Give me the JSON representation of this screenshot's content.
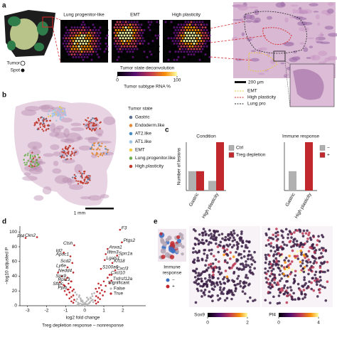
{
  "panel_labels": [
    "a",
    "b",
    "c",
    "d",
    "e"
  ],
  "panel_a": {
    "legend": [
      "Tumor",
      "Spot"
    ],
    "spot_maps": [
      "Lung progenitor-like",
      "EMT",
      "High plasticity"
    ],
    "colorbar": {
      "title": "Tumor state deconvolution",
      "lim": [
        0,
        100
      ],
      "ticks": [
        0,
        100
      ],
      "label": "Tumor subtype RNA %"
    },
    "scale_bar": "200 μm",
    "outline_legend": [
      {
        "name": "EMT",
        "color": "#e8c83a"
      },
      {
        "name": "High plasticity",
        "color": "#d62728"
      },
      {
        "name": "Lung pro",
        "color": "#222222"
      }
    ]
  },
  "panel_b": {
    "legend_title": "Tumor state",
    "states": [
      {
        "name": "Gastric",
        "color": "#5b6f8f"
      },
      {
        "name": "Endoderm.like",
        "color": "#e08b3c"
      },
      {
        "name": "AT2.like",
        "color": "#4a8bc2"
      },
      {
        "name": "AT1.like",
        "color": "#9dc3e6"
      },
      {
        "name": "EMT",
        "color": "#f0d04a"
      },
      {
        "name": "Lung.progenitor.like",
        "color": "#6ab04c"
      },
      {
        "name": "High.plasticity",
        "color": "#c0392b"
      }
    ],
    "scale_bar": "1 mm"
  },
  "chart_data": [
    {
      "type": "bar",
      "title": "Condition",
      "y_label": "Number of lesions",
      "categories": [
        "Gastric",
        "High plasticity"
      ],
      "series": [
        {
          "name": "Ctrl",
          "color": "#b0b0b0",
          "values": [
            4,
            2
          ]
        },
        {
          "name": "Treg depletion",
          "color": "#c0282d",
          "values": [
            4,
            10
          ]
        }
      ],
      "ylim": [
        0,
        10
      ]
    },
    {
      "type": "bar",
      "title": "Immune response",
      "categories": [
        "Gastric",
        "High plasticity"
      ],
      "series": [
        {
          "name": "−",
          "color": "#b0b0b0",
          "values": [
            4,
            null
          ]
        },
        {
          "name": "+",
          "color": "#c0282d",
          "values": [
            null,
            10
          ]
        }
      ],
      "ylim": [
        0,
        10
      ]
    },
    {
      "type": "scatter",
      "y_label": "−log10 adjusted P",
      "x_label": "log2 fold change",
      "subtitle": "Treg depletion response – nonresponse",
      "xlim": [
        -3.4,
        3.2
      ],
      "ylim": [
        0,
        108
      ],
      "xticks": [
        -3,
        -2,
        -1,
        0,
        1,
        2
      ],
      "yticks": [
        0,
        20,
        40,
        60,
        80,
        100
      ],
      "legend_title": "Significant",
      "series": [
        {
          "name": "False",
          "color": "#b5b5b5",
          "x": [
            -0.45,
            -0.4,
            -0.35,
            -0.3,
            -0.25,
            -0.2,
            -0.15,
            -0.1,
            -0.05,
            0,
            0.05,
            0.1,
            0.15,
            0.2,
            0.25,
            0.3,
            0.35,
            0.4,
            0.45,
            -0.42,
            -0.33,
            -0.22,
            -0.12,
            -0.02,
            0.08,
            0.18,
            0.28,
            0.38,
            -0.38,
            -0.28,
            -0.18,
            -0.08,
            0.02,
            0.12,
            0.22,
            0.32,
            0.42,
            -0.5,
            0.5,
            0.0
          ],
          "y": [
            6,
            9,
            4,
            12,
            3,
            8,
            2,
            5,
            1,
            0.5,
            3,
            6,
            2,
            9,
            4,
            11,
            7,
            13,
            5,
            15,
            2,
            10,
            7,
            3,
            1,
            8,
            5,
            16,
            1,
            14,
            6,
            2,
            4,
            11,
            3,
            10,
            8,
            18,
            17,
            1.5
          ]
        },
        {
          "name": "True",
          "color": "#c0282d",
          "x": [
            -0.55,
            -0.6,
            -0.65,
            -0.7,
            -0.75,
            -0.8,
            -0.85,
            -0.9,
            -1.0,
            -1.1,
            -1.2,
            -1.3,
            -0.6,
            -0.7,
            -0.8,
            -0.95,
            -1.05,
            -1.4,
            -0.58,
            -0.72,
            0.55,
            0.6,
            0.65,
            0.7,
            0.75,
            0.8,
            0.85,
            0.9,
            1.0,
            1.1,
            1.2,
            1.3,
            0.6,
            0.7,
            0.8,
            0.95,
            1.05,
            1.4,
            0.58,
            0.72
          ],
          "y": [
            8,
            14,
            20,
            12,
            25,
            18,
            30,
            22,
            35,
            28,
            40,
            32,
            4,
            6,
            10,
            15,
            20,
            45,
            22,
            33,
            7,
            13,
            19,
            11,
            24,
            17,
            28,
            21,
            33,
            27,
            38,
            31,
            3,
            5,
            9,
            14,
            19,
            42,
            23,
            30
          ]
        }
      ],
      "annotations": [
        {
          "text": "Pf4",
          "x": -3.1,
          "y": 92
        },
        {
          "text": "Ckn2",
          "x": -2.5,
          "y": 93
        },
        {
          "text": "Ctsh",
          "x": -0.55,
          "y": 82
        },
        {
          "text": "Id2",
          "x": -1.1,
          "y": 72
        },
        {
          "text": "Apoc1",
          "x": -0.75,
          "y": 67
        },
        {
          "text": "Scd2",
          "x": -0.65,
          "y": 58
        },
        {
          "text": "Ly6e",
          "x": -0.9,
          "y": 52
        },
        {
          "text": "Nedd4",
          "x": -0.6,
          "y": 45
        },
        {
          "text": "Sox9",
          "x": -0.9,
          "y": 38
        },
        {
          "text": "Rpl13",
          "x": -0.7,
          "y": 33
        },
        {
          "text": "Sftpc",
          "x": -1.05,
          "y": 27
        },
        {
          "text": "Ppib",
          "x": -0.85,
          "y": 22
        },
        {
          "text": "F3",
          "x": 1.85,
          "y": 103
        },
        {
          "text": "Ptgs2",
          "x": 1.95,
          "y": 86
        },
        {
          "text": "Anxa1",
          "x": 1.2,
          "y": 77
        },
        {
          "text": "Ifitm3",
          "x": 1.1,
          "y": 70
        },
        {
          "text": "Sprr1a",
          "x": 1.7,
          "y": 68
        },
        {
          "text": "Lgals1",
          "x": 1.05,
          "y": 62
        },
        {
          "text": "Krt18",
          "x": 1.45,
          "y": 58
        },
        {
          "text": "S100a6",
          "x": 0.85,
          "y": 50
        },
        {
          "text": "Cxcl3",
          "x": 1.6,
          "y": 48
        },
        {
          "text": "Cxcl10",
          "x": 1.3,
          "y": 42
        },
        {
          "text": "Tnfrsf12a",
          "x": 1.4,
          "y": 34
        }
      ]
    }
  ],
  "panel_e": {
    "legend_title": [
      "Immune",
      "response"
    ],
    "legend": [
      {
        "name": "−",
        "color": "#3a6fc4"
      },
      {
        "name": "+",
        "color": "#c0282d"
      }
    ],
    "colorbars": [
      {
        "label": "Sox9",
        "lim": [
          0,
          2
        ],
        "ticks": [
          0,
          2
        ]
      },
      {
        "label": "Pf4",
        "lim": [
          0,
          4
        ],
        "ticks": [
          0,
          4
        ]
      }
    ]
  }
}
